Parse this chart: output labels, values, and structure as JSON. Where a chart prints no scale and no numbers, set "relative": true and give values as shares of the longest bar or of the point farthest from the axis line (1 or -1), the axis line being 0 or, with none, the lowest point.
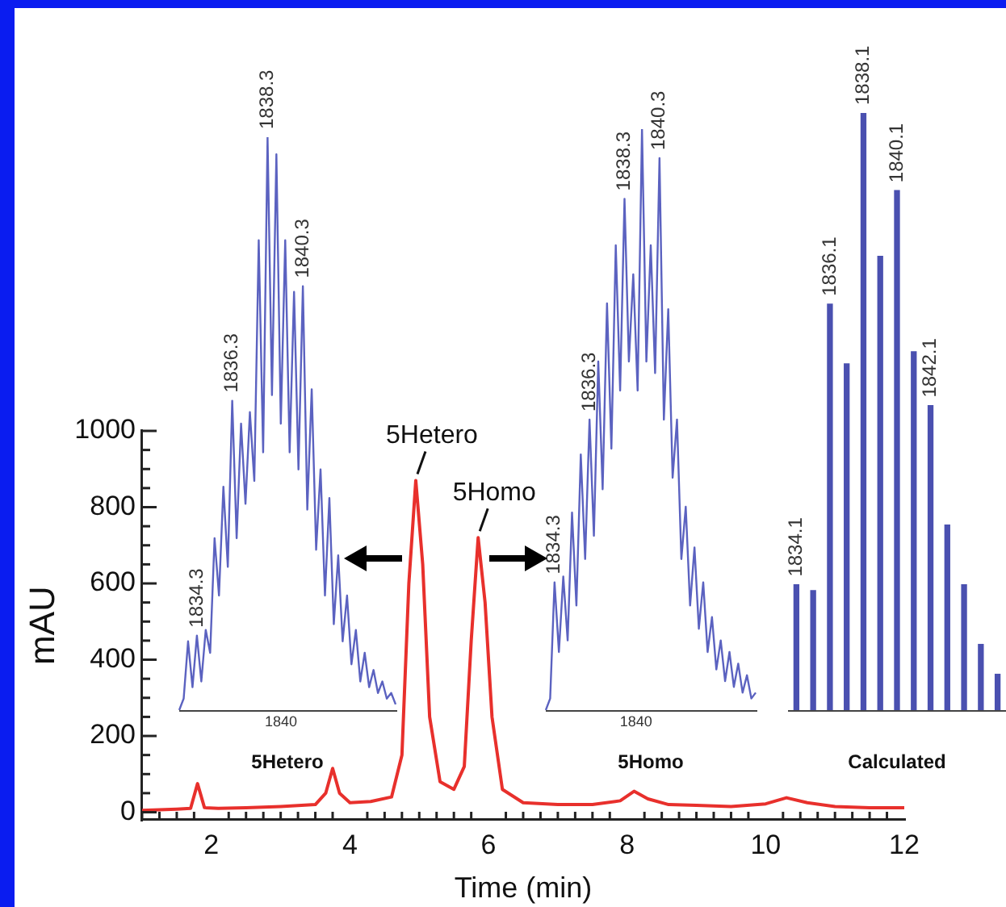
{
  "chart_data": [
    {
      "type": "line",
      "xlabel": "Time (min)",
      "ylabel": "mAU",
      "color": "#e8302c",
      "xlim": [
        1,
        12
      ],
      "ylim": [
        -20,
        1000
      ],
      "x": [
        1,
        1.5,
        1.7,
        1.8,
        1.9,
        2.1,
        2.5,
        3,
        3.5,
        3.65,
        3.75,
        3.85,
        4,
        4.3,
        4.6,
        4.75,
        4.85,
        4.95,
        5.05,
        5.15,
        5.3,
        5.5,
        5.65,
        5.75,
        5.85,
        5.95,
        6.05,
        6.2,
        6.5,
        7,
        7.5,
        7.9,
        8.1,
        8.3,
        8.6,
        9,
        9.5,
        10,
        10.3,
        10.6,
        11,
        11.5,
        12
      ],
      "values": [
        5,
        8,
        10,
        75,
        12,
        10,
        12,
        15,
        20,
        50,
        115,
        50,
        25,
        28,
        40,
        150,
        600,
        870,
        650,
        250,
        80,
        60,
        120,
        450,
        720,
        550,
        250,
        60,
        25,
        20,
        20,
        30,
        55,
        35,
        20,
        18,
        15,
        22,
        38,
        25,
        15,
        12,
        12
      ],
      "xticks": [
        {
          "value": 1,
          "label": null
        },
        {
          "value": 1.25,
          "label": null
        },
        {
          "value": 1.5,
          "label": null
        },
        {
          "value": 1.75,
          "label": null
        },
        2,
        {
          "value": 2.25,
          "label": null
        },
        {
          "value": 2.5,
          "label": null
        },
        {
          "value": 2.75,
          "label": null
        },
        {
          "value": 3,
          "label": null
        },
        {
          "value": 3.25,
          "label": null
        },
        {
          "value": 3.5,
          "label": null
        },
        {
          "value": 3.75,
          "label": null
        },
        4,
        {
          "value": 4.25,
          "label": null
        },
        {
          "value": 4.5,
          "label": null
        },
        {
          "value": 4.75,
          "label": null
        },
        {
          "value": 5,
          "label": null
        },
        {
          "value": 5.25,
          "label": null
        },
        {
          "value": 5.5,
          "label": null
        },
        {
          "value": 5.75,
          "label": null
        },
        6,
        {
          "value": 6.25,
          "label": null
        },
        {
          "value": 6.5,
          "label": null
        },
        {
          "value": 6.75,
          "label": null
        },
        {
          "value": 7,
          "label": null
        },
        {
          "value": 7.25,
          "label": null
        },
        {
          "value": 7.5,
          "label": null
        },
        {
          "value": 7.75,
          "label": null
        },
        8,
        {
          "value": 8.25,
          "label": null
        },
        {
          "value": 8.5,
          "label": null
        },
        {
          "value": 8.75,
          "label": null
        },
        {
          "value": 9,
          "label": null
        },
        {
          "value": 9.25,
          "label": null
        },
        {
          "value": 9.5,
          "label": null
        },
        {
          "value": 9.75,
          "label": null
        },
        10,
        {
          "value": 10.25,
          "label": null
        },
        {
          "value": 10.5,
          "label": null
        },
        {
          "value": 10.75,
          "label": null
        },
        {
          "value": 11,
          "label": null
        },
        {
          "value": 11.25,
          "label": null
        },
        {
          "value": 11.5,
          "label": null
        },
        {
          "value": 11.75,
          "label": null
        },
        12
      ],
      "yticks": [
        0,
        {
          "value": 50,
          "label": null
        },
        {
          "value": 100,
          "label": null
        },
        {
          "value": 150,
          "label": null
        },
        200,
        {
          "value": 250,
          "label": null
        },
        {
          "value": 300,
          "label": null
        },
        {
          "value": 350,
          "label": null
        },
        400,
        {
          "value": 450,
          "label": null
        },
        {
          "value": 500,
          "label": null
        },
        {
          "value": 550,
          "label": null
        },
        600,
        {
          "value": 650,
          "label": null
        },
        {
          "value": 700,
          "label": null
        },
        {
          "value": 750,
          "label": null
        },
        800,
        {
          "value": 850,
          "label": null
        },
        {
          "value": 900,
          "label": null
        },
        {
          "value": 950,
          "label": null
        },
        1000
      ],
      "annotations": [
        {
          "text": "5Hetero",
          "x": 4.95,
          "y": 870
        },
        {
          "text": "5Homo",
          "x": 5.85,
          "y": 720
        }
      ]
    },
    {
      "type": "line",
      "xlabel": "5Hetero",
      "color": "#5b62c0",
      "relative": true,
      "categories": [
        null,
        null,
        null,
        null,
        null,
        null,
        null,
        null,
        null,
        null,
        null,
        null,
        null,
        null,
        null,
        null,
        null,
        null,
        null,
        null,
        null,
        null,
        null,
        null,
        null,
        null,
        null,
        null,
        null,
        null,
        null,
        null,
        null,
        null,
        null,
        null,
        null,
        null,
        null,
        null,
        null,
        null,
        null,
        null,
        null,
        null,
        null,
        null,
        null,
        null
      ],
      "values": [
        0,
        0.02,
        0.12,
        0.04,
        0.13,
        0.05,
        0.14,
        0.1,
        0.3,
        0.2,
        0.39,
        0.25,
        0.54,
        0.3,
        0.5,
        0.36,
        0.52,
        0.4,
        0.82,
        0.45,
        1,
        0.55,
        0.97,
        0.5,
        0.82,
        0.45,
        0.73,
        0.42,
        0.74,
        0.35,
        0.56,
        0.28,
        0.42,
        0.2,
        0.37,
        0.15,
        0.27,
        0.12,
        0.2,
        0.08,
        0.14,
        0.05,
        0.1,
        0.04,
        0.07,
        0.03,
        0.05,
        0.02,
        0.03,
        0.01
      ],
      "annotations": [
        "1840",
        {
          "text": "1834.3",
          "y": 0.13
        },
        {
          "text": "1836.3",
          "y": 0.54
        },
        {
          "text": "1838.3",
          "y": 1
        },
        {
          "text": "1840.3",
          "y": 0.74
        }
      ]
    },
    {
      "type": "line",
      "xlabel": "5Homo",
      "color": "#5b62c0",
      "relative": true,
      "categories": [
        null,
        null,
        null,
        null,
        null,
        null,
        null,
        null,
        null,
        null,
        null,
        null,
        null,
        null,
        null,
        null,
        null,
        null,
        null,
        null,
        null,
        null,
        null,
        null,
        null,
        null,
        null,
        null,
        null,
        null,
        null,
        null,
        null,
        null,
        null,
        null,
        null,
        null,
        null,
        null,
        null,
        null,
        null,
        null,
        null,
        null,
        null,
        null,
        null
      ],
      "values": [
        0,
        0.02,
        0.22,
        0.1,
        0.23,
        0.12,
        0.34,
        0.18,
        0.44,
        0.26,
        0.5,
        0.3,
        0.6,
        0.38,
        0.7,
        0.45,
        0.8,
        0.55,
        0.88,
        0.6,
        0.75,
        0.55,
        1,
        0.6,
        0.8,
        0.58,
        0.95,
        0.5,
        0.69,
        0.4,
        0.5,
        0.26,
        0.35,
        0.18,
        0.28,
        0.14,
        0.22,
        0.1,
        0.16,
        0.07,
        0.12,
        0.05,
        0.1,
        0.04,
        0.08,
        0.03,
        0.06,
        0.02,
        0.03
      ],
      "annotations": [
        "1840",
        {
          "text": "1834.3",
          "y": 0.22
        },
        {
          "text": "1836.3",
          "y": 0.5
        },
        {
          "text": "1838.3",
          "y": 0.88
        },
        {
          "text": "1840.3",
          "y": 0.95
        }
      ]
    },
    {
      "type": "bar",
      "xlabel": "Calculated",
      "color": "#4a50b0",
      "relative": true,
      "categories": [
        null,
        null,
        null,
        null,
        null,
        null,
        null,
        null,
        null,
        null,
        null,
        null,
        null
      ],
      "values": [
        0.21,
        0.2,
        0.68,
        0.58,
        1,
        0.76,
        0.87,
        0.6,
        0.51,
        0.31,
        0.21,
        0.11,
        0.06
      ],
      "annotations": [
        {
          "text": "1834.1",
          "y": 0.21
        },
        {
          "text": "1836.1",
          "y": 0.68
        },
        {
          "text": "1838.1",
          "y": 1
        },
        {
          "text": "1840.1",
          "y": 0.87
        },
        {
          "text": "1842.1",
          "y": 0.51
        }
      ]
    }
  ]
}
